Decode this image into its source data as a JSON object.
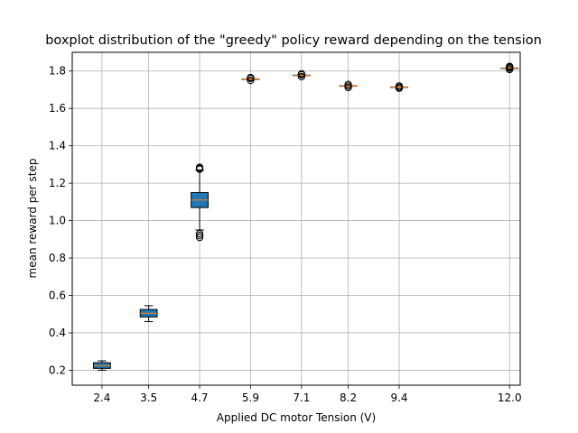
{
  "chart_data": {
    "type": "boxplot",
    "title": "boxplot distribution of the \"greedy\" policy reward depending on the tension",
    "xlabel": "Applied DC motor Tension (V)",
    "ylabel": "mean reward per step",
    "x_ticks": [
      "2.4",
      "3.5",
      "4.7",
      "5.9",
      "7.1",
      "8.2",
      "9.4",
      "12.0"
    ],
    "y_ticks": [
      "0.2",
      "0.4",
      "0.6",
      "0.8",
      "1.0",
      "1.2",
      "1.4",
      "1.6",
      "1.8"
    ],
    "xlim": [
      1.7,
      12.25
    ],
    "ylim": [
      0.12,
      1.9
    ],
    "grid": true,
    "box_color": "#1f77b4",
    "median_color": "#ff7f0e",
    "boxes": [
      {
        "x": 2.4,
        "whisker_low": 0.2,
        "q1": 0.21,
        "median": 0.225,
        "q3": 0.24,
        "whisker_high": 0.25,
        "fliers": []
      },
      {
        "x": 3.5,
        "whisker_low": 0.46,
        "q1": 0.485,
        "median": 0.505,
        "q3": 0.525,
        "whisker_high": 0.545,
        "fliers": []
      },
      {
        "x": 4.7,
        "whisker_low": 0.95,
        "q1": 1.07,
        "median": 1.11,
        "q3": 1.15,
        "whisker_high": 1.27,
        "fliers": [
          1.28,
          1.285,
          1.275,
          0.93,
          0.92,
          0.91
        ]
      },
      {
        "x": 5.9,
        "whisker_low": 1.755,
        "q1": 1.756,
        "median": 1.757,
        "q3": 1.758,
        "whisker_high": 1.76,
        "fliers": [
          1.765,
          1.75,
          1.76
        ]
      },
      {
        "x": 7.1,
        "whisker_low": 1.775,
        "q1": 1.776,
        "median": 1.777,
        "q3": 1.778,
        "whisker_high": 1.78,
        "fliers": [
          1.785,
          1.77,
          1.78
        ]
      },
      {
        "x": 8.2,
        "whisker_low": 1.718,
        "q1": 1.719,
        "median": 1.72,
        "q3": 1.721,
        "whisker_high": 1.722,
        "fliers": [
          1.728,
          1.712,
          1.72
        ]
      },
      {
        "x": 9.4,
        "whisker_low": 1.712,
        "q1": 1.713,
        "median": 1.714,
        "q3": 1.715,
        "whisker_high": 1.716,
        "fliers": [
          1.72,
          1.708,
          1.714
        ]
      },
      {
        "x": 12.0,
        "whisker_low": 1.813,
        "q1": 1.814,
        "median": 1.815,
        "q3": 1.816,
        "whisker_high": 1.817,
        "fliers": [
          1.825,
          1.808,
          1.815,
          1.82
        ]
      }
    ]
  }
}
